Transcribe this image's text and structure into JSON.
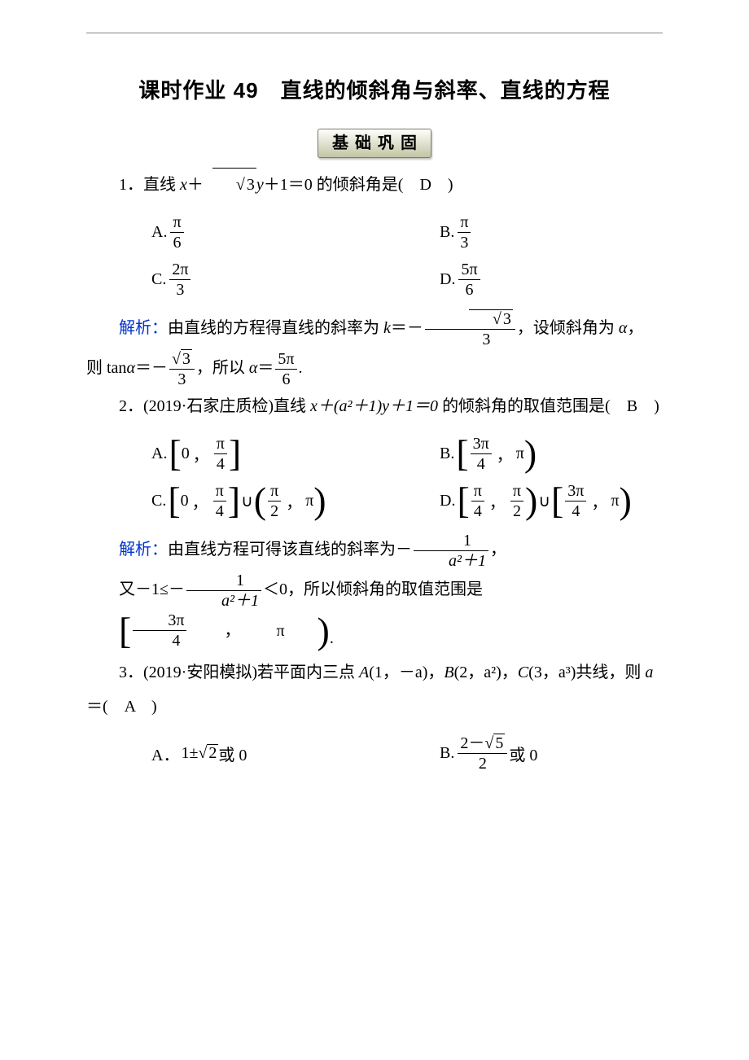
{
  "colors": {
    "text": "#000000",
    "blue": "#0033cc",
    "background": "#ffffff",
    "badgeBorder": "#7a7a7a",
    "badgeGradientTop": "#fefefa",
    "badgeGradientBottom": "#c3c5a4"
  },
  "typography": {
    "titleFontSize": 26,
    "bodyFontSize": 20,
    "titleFont": "SimHei",
    "bodyFont": "SimSun",
    "mathFont": "Times New Roman"
  },
  "title": "课时作业 49　直线的倾斜角与斜率、直线的方程",
  "sectionBadge": "基础巩固",
  "q1": {
    "number": "1．",
    "stem_before": "直线 ",
    "expr_x": "x",
    "expr_plus1": "＋",
    "sqrt3": "3",
    "expr_y": "y",
    "expr_rest": "＋1＝0 的倾斜角是(",
    "answer": "D",
    "close": ")",
    "optA_label": "A.",
    "optA_num": "π",
    "optA_den": "6",
    "optB_label": "B.",
    "optB_num": "π",
    "optB_den": "3",
    "optC_label": "C.",
    "optC_num": "2π",
    "optC_den": "3",
    "optD_label": "D.",
    "optD_num": "5π",
    "optD_den": "6",
    "expl_label": "解析：",
    "expl_t1": "由直线的方程得直线的斜率为 ",
    "expl_k": "k",
    "expl_eq": "＝－",
    "expl_frac_num": "3",
    "expl_frac_den": "3",
    "expl_t2": "，设倾斜角为 ",
    "alpha": "α",
    "expl_t3": "，",
    "expl_line2_a": "则 tan",
    "expl_line2_b": "＝－",
    "expl_line2_c": "，所以 ",
    "expl_line2_d": "＝",
    "expl_res_num": "5π",
    "expl_res_den": "6",
    "period": "."
  },
  "q2": {
    "number": "2．",
    "source": "(2019·石家庄质检)",
    "stem_a": "直线 ",
    "expr": "x＋(a²＋1)y＋1＝0",
    "stem_b": " 的倾斜角的取值范围是(",
    "answer": "B",
    "close": ")",
    "optA_label": "A.",
    "optA_left": "[",
    "optA_a": "0",
    "optA_comma": "，",
    "optA_b_num": "π",
    "optA_b_den": "4",
    "optA_right": "]",
    "optB_label": "B.",
    "optB_left": "[",
    "optB_a_num": "3π",
    "optB_a_den": "4",
    "optB_comma": "，",
    "optB_b": "π",
    "optB_right": ")",
    "optC_label": "C.",
    "optC1_left": "[",
    "optC1_a": "0",
    "optC1_b_num": "π",
    "optC1_b_den": "4",
    "optC1_right": "]",
    "union": "∪",
    "optC2_left": "(",
    "optC2_a_num": "π",
    "optC2_a_den": "2",
    "optC2_b": "π",
    "optC2_right": ")",
    "optD_label": "D.",
    "optD1_left": "[",
    "optD1_a_num": "π",
    "optD1_a_den": "4",
    "optD1_b_num": "π",
    "optD1_b_den": "2",
    "optD1_right": ")",
    "optD2_left": "[",
    "optD2_a_num": "3π",
    "optD2_a_den": "4",
    "optD2_b": "π",
    "optD2_right": ")",
    "expl_label": "解析：",
    "expl_t1": "由直线方程可得该直线的斜率为－",
    "expl_frac_num": "1",
    "expl_frac_den": "a²＋1",
    "expl_t2": "，",
    "expl2_a": "又－1≤－",
    "expl2_b": "＜0，所以倾斜角的取值范围是",
    "expl2_res_left": "[",
    "expl2_res_a_num": "3π",
    "expl2_res_a_den": "4",
    "expl2_res_b": "π",
    "expl2_res_right": ")",
    "period": "."
  },
  "q3": {
    "number": "3．",
    "source": "(2019·安阳模拟)",
    "stem_a": "若平面内三点 ",
    "A": "A",
    "Acoord": "(1，－a)",
    "comma1": "，",
    "B": "B",
    "Bcoord": "(2，a²)",
    "comma2": "，",
    "C": "C",
    "Ccoord": "(3，a³)",
    "stem_b": "共线，则 ",
    "a": "a",
    "stem_c": "＝(",
    "answer": "A",
    "close": ")",
    "optA_label": "A．",
    "optA_a": "1±",
    "optA_sqrt": "2",
    "optA_b": "或 0",
    "optB_label": "B.",
    "optB_num_a": "2－",
    "optB_num_sqrt": "5",
    "optB_den": "2",
    "optB_b": "或 0"
  }
}
